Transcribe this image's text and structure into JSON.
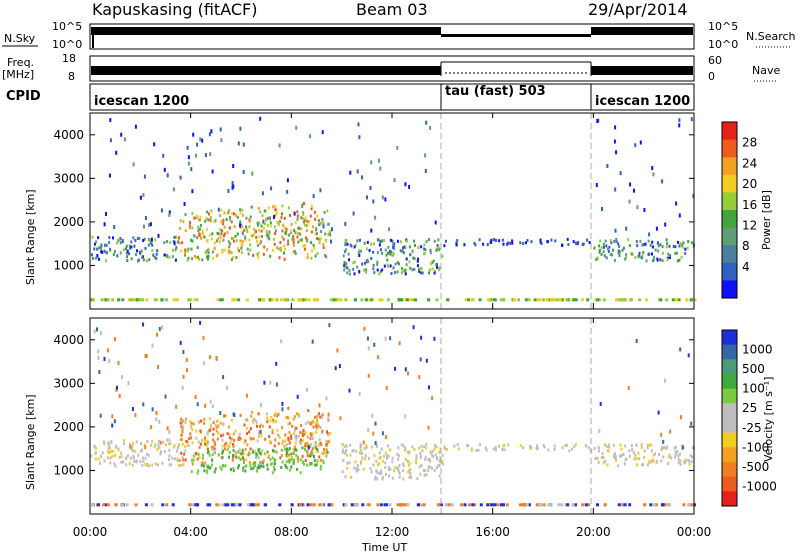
{
  "header": {
    "radar": "Kapuskasing (fitACF)",
    "beam": "Beam 03",
    "date": "29/Apr/2014"
  },
  "strips": {
    "nsky_label": "N.Sky",
    "nsky_ticks": [
      "10^5",
      "10^0"
    ],
    "nsearch_label": "N.Search",
    "freq_label_line1": "Freq.",
    "freq_label_line2": "[MHz]",
    "freq_ticks": [
      "18",
      "8"
    ],
    "nave_ticks": [
      "60",
      "0"
    ],
    "nave_label": "Nave",
    "cpid_label": "CPID"
  },
  "modes": [
    {
      "label": "icescan 1200",
      "start_hour": 0,
      "end_hour": 14
    },
    {
      "label": "tau (fast) 503",
      "start_hour": 14,
      "end_hour": 20
    },
    {
      "label": "icescan 1200",
      "start_hour": 20,
      "end_hour": 24
    }
  ],
  "axes": {
    "ylabel": "Slant Range [km]",
    "yticks": [
      "1000",
      "2000",
      "3000",
      "4000"
    ],
    "xlabel": "Time UT",
    "xticks": [
      "00:00",
      "04:00",
      "08:00",
      "12:00",
      "16:00",
      "20:00",
      "00:00"
    ]
  },
  "colorbars": {
    "power": {
      "label": "Power [dB]",
      "ticks": [
        "28",
        "24",
        "20",
        "16",
        "12",
        "8",
        "4"
      ],
      "colors": [
        "#e8201c",
        "#f05a1c",
        "#f4a020",
        "#f3cc22",
        "#93cf34",
        "#3fa53c",
        "#5f9e77",
        "#4a7fa0",
        "#3060c0",
        "#1010ff"
      ]
    },
    "velocity": {
      "label": "Velocity [m s⁻¹]",
      "ticks": [
        "1000",
        "500",
        "100",
        "25",
        "-25",
        "-100",
        "-500",
        "-1000"
      ],
      "colors": [
        "#1f2fd8",
        "#3467a8",
        "#4b9a78",
        "#3faa3c",
        "#7acc3e",
        "#bebebe",
        "#bebebe",
        "#f4cc22",
        "#f6a020",
        "#f07f22",
        "#ee5a1c",
        "#e8201c"
      ]
    }
  },
  "chart_data": [
    {
      "type": "heatmap",
      "title": "Power",
      "x": "Time UT (hours)",
      "xlim": [
        0,
        24
      ],
      "y": "Slant Range [km]",
      "ylim": [
        0,
        4500
      ],
      "value_label": "Power [dB]",
      "value_range": [
        0,
        30
      ],
      "bands": [
        {
          "t0": 0,
          "t1": 3.5,
          "r0": 1100,
          "r1": 1650,
          "dominant": "blue/green 4-12 dB"
        },
        {
          "t0": 3.5,
          "t1": 9.5,
          "r0": 1100,
          "r1": 2200,
          "dominant": "green/orange 12-24 dB"
        },
        {
          "t0": 10,
          "t1": 14,
          "r0": 800,
          "r1": 1600,
          "dominant": "blue/green 4-12 dB"
        },
        {
          "t0": 14,
          "t1": 20,
          "r0": 1450,
          "r1": 1600,
          "dominant": "blue 4-8 dB"
        },
        {
          "t0": 20,
          "t1": 24,
          "r0": 1100,
          "r1": 1600,
          "dominant": "green/blue 4-12 dB"
        }
      ]
    },
    {
      "type": "heatmap",
      "title": "Velocity",
      "x": "Time UT (hours)",
      "xlim": [
        0,
        24
      ],
      "y": "Slant Range [km]",
      "ylim": [
        0,
        4500
      ],
      "value_label": "Velocity [m s⁻¹]",
      "value_range": [
        -1000,
        1000
      ],
      "bands": [
        {
          "t0": 0,
          "t1": 3.5,
          "r0": 1100,
          "r1": 1700,
          "dominant": "grey -25 to 25"
        },
        {
          "t0": 3.5,
          "t1": 9.5,
          "r0": 1100,
          "r1": 2200,
          "dominant": "orange -100 to -500"
        },
        {
          "t0": 4,
          "t1": 9.5,
          "r0": 900,
          "r1": 1400,
          "dominant": "green 100"
        },
        {
          "t0": 10,
          "t1": 14,
          "r0": 800,
          "r1": 1600,
          "dominant": "grey -25 to 25"
        },
        {
          "t0": 14,
          "t1": 20,
          "r0": 1450,
          "r1": 1600,
          "dominant": "grey -25 to 25"
        },
        {
          "t0": 20,
          "t1": 24,
          "r0": 1100,
          "r1": 1600,
          "dominant": "grey -25 to 25"
        }
      ]
    }
  ]
}
